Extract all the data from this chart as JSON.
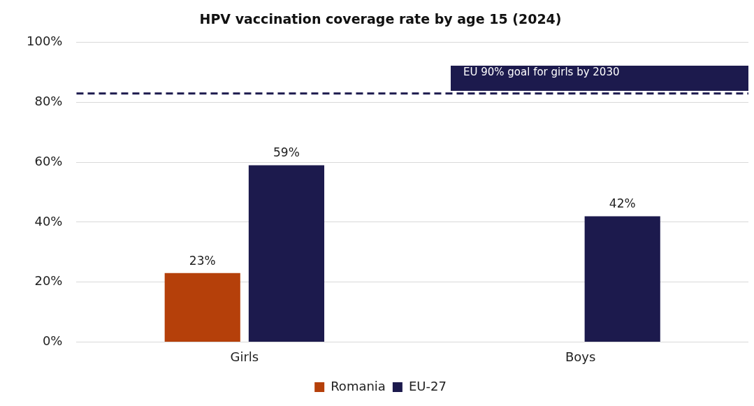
{
  "chart_data": {
    "type": "bar",
    "title": "HPV vaccination coverage rate by age 15 (2024)",
    "categories": [
      "Girls",
      "Boys"
    ],
    "series": [
      {
        "name": "Romania",
        "color": "#b5400a",
        "values": [
          23,
          null
        ],
        "value_labels": [
          "23%",
          null
        ]
      },
      {
        "name": "EU-27",
        "color": "#1c1a4d",
        "values": [
          59,
          42
        ],
        "value_labels": [
          "59%",
          "42%"
        ]
      }
    ],
    "ylim": [
      0,
      100
    ],
    "yticks": [
      {
        "value": 0,
        "label": "0%"
      },
      {
        "value": 20,
        "label": "20%"
      },
      {
        "value": 40,
        "label": "40%"
      },
      {
        "value": 60,
        "label": "60%"
      },
      {
        "value": 80,
        "label": "80%"
      },
      {
        "value": 100,
        "label": "100%"
      }
    ],
    "grid": "y",
    "legend": "bottom",
    "ref_lines": [
      {
        "axis": "y",
        "value": 83,
        "label": "EU 90% goal for girls by 2030",
        "color": "#1c1a4d",
        "line_style": "dashed"
      }
    ]
  }
}
